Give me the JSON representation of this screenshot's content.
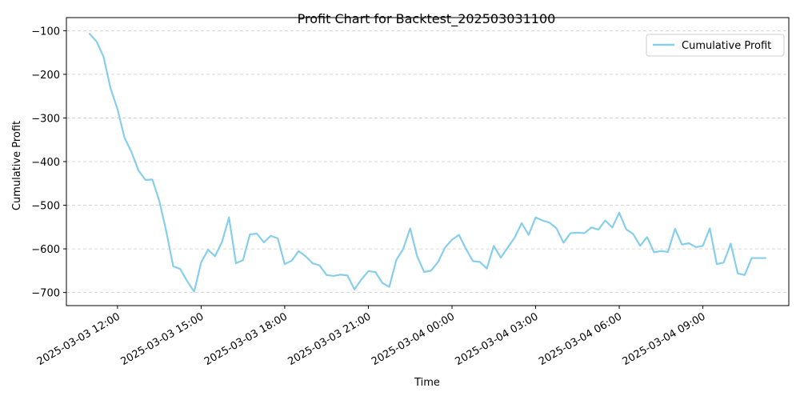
{
  "chart_data": {
    "type": "line",
    "title": "Profit Chart for Backtest_202503031100",
    "xlabel": "Time",
    "ylabel": "Cumulative Profit",
    "grid": "horizontal dashed",
    "legend_position": "top-right",
    "xlim": [
      "2025-03-03 10:10",
      "2025-03-04 12:05"
    ],
    "ylim": [
      -730,
      -70
    ],
    "x_ticks": [
      "2025-03-03 12:00",
      "2025-03-03 15:00",
      "2025-03-03 18:00",
      "2025-03-03 21:00",
      "2025-03-04 00:00",
      "2025-03-04 03:00",
      "2025-03-04 06:00",
      "2025-03-04 09:00"
    ],
    "y_ticks": [
      -100,
      -200,
      -300,
      -400,
      -500,
      -600,
      -700
    ],
    "colors": {
      "series": "#87CEEB",
      "grid": "#cccccc",
      "axis": "#000000"
    },
    "series": [
      {
        "name": "Cumulative Profit",
        "x": [
          "2025-03-03 11:00",
          "2025-03-03 11:15",
          "2025-03-03 11:30",
          "2025-03-03 11:45",
          "2025-03-03 12:00",
          "2025-03-03 12:15",
          "2025-03-03 12:30",
          "2025-03-03 12:45",
          "2025-03-03 13:00",
          "2025-03-03 13:15",
          "2025-03-03 13:30",
          "2025-03-03 13:45",
          "2025-03-03 14:00",
          "2025-03-03 14:15",
          "2025-03-03 14:30",
          "2025-03-03 14:45",
          "2025-03-03 15:00",
          "2025-03-03 15:15",
          "2025-03-03 15:30",
          "2025-03-03 15:45",
          "2025-03-03 16:00",
          "2025-03-03 16:15",
          "2025-03-03 16:30",
          "2025-03-03 16:45",
          "2025-03-03 17:00",
          "2025-03-03 17:15",
          "2025-03-03 17:30",
          "2025-03-03 17:45",
          "2025-03-03 18:00",
          "2025-03-03 18:15",
          "2025-03-03 18:30",
          "2025-03-03 18:45",
          "2025-03-03 19:00",
          "2025-03-03 19:15",
          "2025-03-03 19:30",
          "2025-03-03 19:45",
          "2025-03-03 20:00",
          "2025-03-03 20:15",
          "2025-03-03 20:30",
          "2025-03-03 20:45",
          "2025-03-03 21:00",
          "2025-03-03 21:15",
          "2025-03-03 21:30",
          "2025-03-03 21:45",
          "2025-03-03 22:00",
          "2025-03-03 22:15",
          "2025-03-03 22:30",
          "2025-03-03 22:45",
          "2025-03-03 23:00",
          "2025-03-03 23:15",
          "2025-03-03 23:30",
          "2025-03-03 23:45",
          "2025-03-04 00:00",
          "2025-03-04 00:15",
          "2025-03-04 00:30",
          "2025-03-04 00:45",
          "2025-03-04 01:00",
          "2025-03-04 01:15",
          "2025-03-04 01:30",
          "2025-03-04 01:45",
          "2025-03-04 02:00",
          "2025-03-04 02:15",
          "2025-03-04 02:30",
          "2025-03-04 02:45",
          "2025-03-04 03:00",
          "2025-03-04 03:15",
          "2025-03-04 03:30",
          "2025-03-04 03:45",
          "2025-03-04 04:00",
          "2025-03-04 04:15",
          "2025-03-04 04:30",
          "2025-03-04 04:45",
          "2025-03-04 05:00",
          "2025-03-04 05:15",
          "2025-03-04 05:30",
          "2025-03-04 05:45",
          "2025-03-04 06:00",
          "2025-03-04 06:15",
          "2025-03-04 06:30",
          "2025-03-04 06:45",
          "2025-03-04 07:00",
          "2025-03-04 07:15",
          "2025-03-04 07:30",
          "2025-03-04 07:45",
          "2025-03-04 08:00",
          "2025-03-04 08:15",
          "2025-03-04 08:30",
          "2025-03-04 08:45",
          "2025-03-04 09:00",
          "2025-03-04 09:15",
          "2025-03-04 09:30",
          "2025-03-04 09:45",
          "2025-03-04 10:00",
          "2025-03-04 10:15",
          "2025-03-04 10:30",
          "2025-03-04 10:45",
          "2025-03-04 11:00",
          "2025-03-04 11:15"
        ],
        "y": [
          -107,
          -125,
          -160,
          -232,
          -280,
          -345,
          -378,
          -420,
          -442,
          -441,
          -490,
          -560,
          -640,
          -646,
          -674,
          -698,
          -631,
          -602,
          -617,
          -584,
          -528,
          -633,
          -626,
          -567,
          -565,
          -585,
          -570,
          -576,
          -635,
          -627,
          -605,
          -617,
          -633,
          -638,
          -660,
          -662,
          -659,
          -661,
          -693,
          -670,
          -651,
          -653,
          -678,
          -687,
          -626,
          -600,
          -553,
          -617,
          -653,
          -650,
          -630,
          -597,
          -579,
          -568,
          -600,
          -628,
          -630,
          -645,
          -593,
          -620,
          -597,
          -574,
          -541,
          -568,
          -528,
          -535,
          -540,
          -553,
          -586,
          -564,
          -563,
          -564,
          -551,
          -556,
          -535,
          -551,
          -517,
          -555,
          -566,
          -593,
          -573,
          -608,
          -605,
          -607,
          -554,
          -590,
          -587,
          -596,
          -593,
          -553,
          -635,
          -631,
          -588,
          -656,
          -660,
          -621,
          -621,
          -621
        ]
      }
    ]
  }
}
